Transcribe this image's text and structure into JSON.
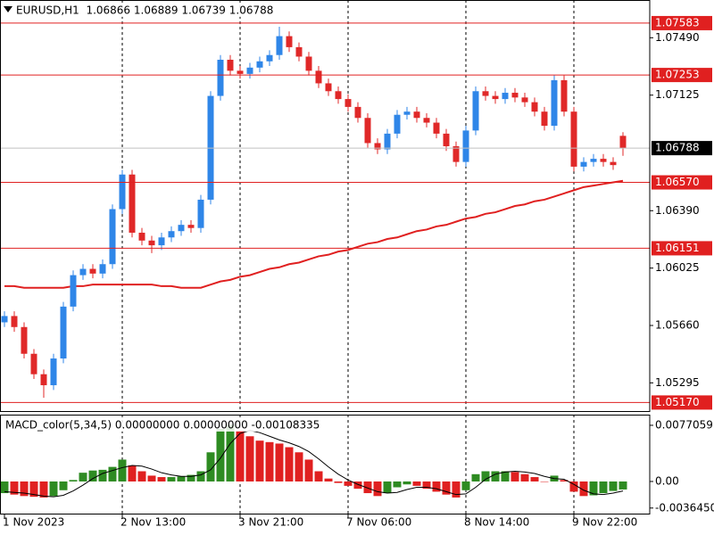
{
  "chart_data": [
    {
      "type": "candlestick",
      "title": "EURUSD,H1  1.06866 1.06889 1.06739 1.06788",
      "categories": [
        "1 Nov 2023",
        null,
        null,
        null,
        null,
        null,
        null,
        null,
        null,
        null,
        null,
        null,
        "2 Nov 13:00",
        null,
        null,
        null,
        null,
        null,
        null,
        null,
        null,
        null,
        null,
        null,
        "3 Nov 21:00",
        null,
        null,
        null,
        null,
        null,
        null,
        null,
        null,
        null,
        null,
        "7 Nov 06:00",
        null,
        null,
        null,
        null,
        null,
        null,
        null,
        null,
        null,
        null,
        null,
        "8 Nov 14:00",
        null,
        null,
        null,
        null,
        null,
        null,
        null,
        null,
        null,
        null,
        "9 Nov 22:00",
        null,
        null,
        null,
        null,
        null
      ],
      "open": [
        1.0568,
        1.0572,
        1.0565,
        1.0548,
        1.0535,
        1.0528,
        1.0545,
        1.0578,
        1.0598,
        1.0602,
        1.0599,
        1.0605,
        1.064,
        1.0662,
        1.0625,
        1.062,
        1.0617,
        1.0622,
        1.0626,
        1.063,
        1.0628,
        1.0646,
        1.0712,
        1.0735,
        1.0728,
        1.0726,
        1.073,
        1.0734,
        1.0738,
        1.075,
        1.0743,
        1.0737,
        1.0728,
        1.072,
        1.0715,
        1.071,
        1.0705,
        1.0698,
        1.0682,
        1.0678,
        1.0688,
        1.07,
        1.0702,
        1.0698,
        1.0695,
        1.0688,
        1.068,
        1.067,
        1.069,
        1.0715,
        1.0712,
        1.071,
        1.0714,
        1.0711,
        1.0708,
        1.0702,
        1.0693,
        1.0722,
        1.0702,
        1.0667,
        1.067,
        1.0672,
        1.067,
        1.06866
      ],
      "high": [
        1.0575,
        1.0575,
        1.0568,
        1.0551,
        1.0538,
        1.0548,
        1.0581,
        1.0601,
        1.0605,
        1.0605,
        1.0608,
        1.0643,
        1.0665,
        1.0665,
        1.0628,
        1.0623,
        1.0625,
        1.0629,
        1.0633,
        1.0633,
        1.0649,
        1.0715,
        1.0738,
        1.0738,
        1.0731,
        1.0733,
        1.0737,
        1.0741,
        1.0756,
        1.0753,
        1.0746,
        1.074,
        1.0731,
        1.0723,
        1.0718,
        1.0713,
        1.0708,
        1.0701,
        1.0685,
        1.0691,
        1.0703,
        1.0705,
        1.0705,
        1.0701,
        1.0698,
        1.0691,
        1.0683,
        1.0693,
        1.0718,
        1.0718,
        1.0715,
        1.0717,
        1.0717,
        1.0714,
        1.0711,
        1.0705,
        1.0725,
        1.0725,
        1.0705,
        1.0673,
        1.0675,
        1.0675,
        1.0673,
        1.06889
      ],
      "low": [
        1.0565,
        1.0562,
        1.0545,
        1.0532,
        1.052,
        1.0525,
        1.0542,
        1.0575,
        1.0595,
        1.0596,
        1.0596,
        1.0602,
        1.0637,
        1.0622,
        1.0617,
        1.0612,
        1.0614,
        1.0619,
        1.0623,
        1.0625,
        1.0625,
        1.0643,
        1.0709,
        1.0725,
        1.0723,
        1.0723,
        1.0727,
        1.0731,
        1.0735,
        1.074,
        1.0734,
        1.0725,
        1.0717,
        1.0712,
        1.0707,
        1.0702,
        1.0695,
        1.0679,
        1.0675,
        1.0675,
        1.0685,
        1.0697,
        1.0695,
        1.0692,
        1.0685,
        1.0677,
        1.0667,
        1.0667,
        1.0687,
        1.0709,
        1.0707,
        1.0707,
        1.0708,
        1.0705,
        1.0699,
        1.069,
        1.069,
        1.0699,
        1.0664,
        1.0664,
        1.0667,
        1.0667,
        1.0665,
        1.06739
      ],
      "close": [
        1.0572,
        1.0565,
        1.0548,
        1.0535,
        1.0528,
        1.0545,
        1.0578,
        1.0598,
        1.0602,
        1.0599,
        1.0605,
        1.064,
        1.0662,
        1.0625,
        1.062,
        1.0617,
        1.0622,
        1.0626,
        1.063,
        1.0628,
        1.0646,
        1.0712,
        1.0735,
        1.0728,
        1.0726,
        1.073,
        1.0734,
        1.0738,
        1.075,
        1.0743,
        1.0737,
        1.0728,
        1.072,
        1.0715,
        1.071,
        1.0705,
        1.0698,
        1.0682,
        1.0678,
        1.0688,
        1.07,
        1.0702,
        1.0698,
        1.0695,
        1.0688,
        1.068,
        1.067,
        1.069,
        1.0715,
        1.0712,
        1.071,
        1.0714,
        1.0711,
        1.0708,
        1.0702,
        1.0693,
        1.0722,
        1.0702,
        1.0667,
        1.067,
        1.0672,
        1.067,
        1.0668,
        1.06788
      ],
      "ma_values": [
        1.0591,
        1.0591,
        1.059,
        1.059,
        1.059,
        1.059,
        1.059,
        1.0591,
        1.0591,
        1.0592,
        1.0592,
        1.0592,
        1.0592,
        1.0592,
        1.0592,
        1.0592,
        1.0591,
        1.0591,
        1.059,
        1.059,
        1.059,
        1.0592,
        1.0594,
        1.0595,
        1.0597,
        1.0598,
        1.06,
        1.0602,
        1.0603,
        1.0605,
        1.0606,
        1.0608,
        1.061,
        1.0611,
        1.0613,
        1.0614,
        1.0616,
        1.0618,
        1.0619,
        1.0621,
        1.0622,
        1.0624,
        1.0626,
        1.0627,
        1.0629,
        1.063,
        1.0632,
        1.0634,
        1.0635,
        1.0637,
        1.0638,
        1.064,
        1.0642,
        1.0643,
        1.0645,
        1.0646,
        1.0648,
        1.065,
        1.0652,
        1.0654,
        1.0655,
        1.0656,
        1.0657,
        1.0658
      ],
      "ma_color": "#e02020",
      "up_color": "#2f86e8",
      "down_color": "#e02828",
      "levels": [
        1.07583,
        1.07253,
        {
          "value": 1.0657,
          "label": "1.06570"
        },
        1.06151,
        {
          "value": 1.0517,
          "label": "1.05170"
        }
      ],
      "level_color": "#e02020",
      "current_price": 1.06788,
      "ylim": [
        1.0511,
        1.0773
      ],
      "yticks": [
        {
          "value": 1.0749,
          "label": "1.07490"
        },
        1.07125,
        {
          "value": 1.0639,
          "label": "1.06390"
        },
        1.06025,
        {
          "value": 1.0566,
          "label": "1.05660"
        },
        1.05295
      ]
    },
    {
      "type": "macd",
      "title": "MACD_color(5,34,5) 0.00000000 0.00000000 -0.00108335",
      "values": [
        -0.0016,
        -0.0018,
        -0.002,
        -0.0021,
        -0.0022,
        -0.002,
        -0.0012,
        0.0002,
        0.0012,
        0.0015,
        0.0016,
        0.002,
        0.003,
        0.0022,
        0.0014,
        0.0008,
        0.0006,
        0.0006,
        0.0007,
        0.0009,
        0.0014,
        0.004,
        0.0072,
        0.0078,
        0.007,
        0.0062,
        0.0056,
        0.0054,
        0.0052,
        0.0047,
        0.004,
        0.003,
        0.0014,
        0.0004,
        -0.0002,
        -0.0006,
        -0.001,
        -0.0016,
        -0.002,
        -0.0016,
        -0.0008,
        -0.0004,
        -0.0006,
        -0.001,
        -0.0014,
        -0.0018,
        -0.0022,
        -0.0012,
        0.001,
        0.0014,
        0.0014,
        0.0014,
        0.0013,
        0.001,
        0.0006,
        0.0,
        0.0008,
        0.0002,
        -0.0014,
        -0.002,
        -0.0019,
        -0.0016,
        -0.0013,
        -0.0011
      ],
      "signal": [
        -0.0014,
        -0.0015,
        -0.0016,
        -0.0018,
        -0.002,
        -0.0021,
        -0.0019,
        -0.0013,
        -0.0005,
        0.0004,
        0.0011,
        0.0015,
        0.0019,
        0.0022,
        0.0021,
        0.0017,
        0.0012,
        0.0009,
        0.0007,
        0.0007,
        0.0009,
        0.0016,
        0.0032,
        0.0052,
        0.0066,
        0.007,
        0.0067,
        0.0062,
        0.0057,
        0.0053,
        0.0048,
        0.0041,
        0.0031,
        0.002,
        0.001,
        0.0002,
        -0.0004,
        -0.0009,
        -0.0014,
        -0.0016,
        -0.0015,
        -0.0011,
        -0.0008,
        -0.0008,
        -0.001,
        -0.0014,
        -0.0018,
        -0.0017,
        -0.0008,
        0.0003,
        0.001,
        0.0013,
        0.0014,
        0.0013,
        0.0011,
        0.0007,
        0.0004,
        0.0003,
        -0.0004,
        -0.0012,
        -0.0017,
        -0.0018,
        -0.0016,
        -0.0013
      ],
      "up_color": "#2e8b22",
      "down_color": "#e02020",
      "signal_color": "#000000",
      "ylim": [
        -0.00453,
        0.00917
      ],
      "yticks": [
        0.0077059,
        {
          "value": 0,
          "label": "0.00"
        },
        {
          "value": -0.003645,
          "label": "-0.0036450"
        }
      ]
    }
  ]
}
